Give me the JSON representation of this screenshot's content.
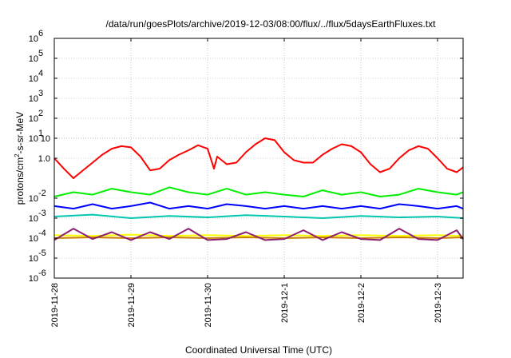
{
  "chart_data": {
    "type": "line",
    "title": "/data/run/goesPlots/archive/2019-12-03/08:00/flux/../flux/5daysEarthFluxes.txt",
    "xlabel": "Coordinated Universal Time (UTC)",
    "ylabel": {
      "base": "protons/cm",
      "sup": "2",
      "tail": "-s-sr-MeV"
    },
    "y_scale": "log",
    "ylim": [
      1e-06,
      1000000
    ],
    "y_ticks": [
      {
        "base": "10",
        "exp": "-6",
        "value": 1e-06
      },
      {
        "base": "10",
        "exp": "-5",
        "value": 1e-05
      },
      {
        "base": "10",
        "exp": "-4",
        "value": 0.0001
      },
      {
        "base": "10",
        "exp": "-3",
        "value": 0.001
      },
      {
        "base": "10",
        "exp": "-2",
        "value": 0.01
      },
      {
        "base": "10",
        "exp": "1",
        "value": 10
      },
      {
        "base": "10",
        "exp": "2",
        "value": 100
      },
      {
        "base": "10",
        "exp": "3",
        "value": 1000
      },
      {
        "base": "10",
        "exp": "4",
        "value": 10000
      },
      {
        "base": "10",
        "exp": "5",
        "value": 100000
      },
      {
        "base": "10",
        "exp": "6",
        "value": 1000000
      }
    ],
    "y_ticks_plain": [
      {
        "label": "10",
        "value": 10
      },
      {
        "label": "1.0",
        "value": 1
      }
    ],
    "xlim": [
      "2019-11-28 00:00",
      "2019-12-03 08:00"
    ],
    "x_ticks": [
      {
        "label": "2019-11-28",
        "value": "2019-11-28 00:00"
      },
      {
        "label": "2019-11-29",
        "value": "2019-11-29 00:00"
      },
      {
        "label": "2019-11-30",
        "value": "2019-11-30 00:00"
      },
      {
        "label": "2019-12-1",
        "value": "2019-12-01 00:00"
      },
      {
        "label": "2019-12-2",
        "value": "2019-12-02 00:00"
      },
      {
        "label": "2019-12-3",
        "value": "2019-12-03 00:00"
      }
    ],
    "grid": true,
    "series_colors": [
      "#ff0000",
      "#00ee00",
      "#0000ff",
      "#00c8b0",
      "#ffff00",
      "#c88000",
      "#8b2070"
    ],
    "series": [
      {
        "color": "#ff0000",
        "x": [
          "2019-11-28 00:00",
          "2019-11-28 03:00",
          "2019-11-28 06:00",
          "2019-11-28 09:00",
          "2019-11-28 12:00",
          "2019-11-28 15:00",
          "2019-11-28 18:00",
          "2019-11-28 21:00",
          "2019-11-29 00:00",
          "2019-11-29 03:00",
          "2019-11-29 06:00",
          "2019-11-29 09:00",
          "2019-11-29 12:00",
          "2019-11-29 15:00",
          "2019-11-29 18:00",
          "2019-11-29 21:00",
          "2019-11-30 00:00",
          "2019-11-30 02:00",
          "2019-11-30 03:00",
          "2019-11-30 06:00",
          "2019-11-30 09:00",
          "2019-11-30 12:00",
          "2019-11-30 15:00",
          "2019-11-30 18:00",
          "2019-11-30 21:00",
          "2019-12-01 00:00",
          "2019-12-01 03:00",
          "2019-12-01 06:00",
          "2019-12-01 09:00",
          "2019-12-01 12:00",
          "2019-12-01 15:00",
          "2019-12-01 18:00",
          "2019-12-01 21:00",
          "2019-12-02 00:00",
          "2019-12-02 03:00",
          "2019-12-02 06:00",
          "2019-12-02 09:00",
          "2019-12-02 12:00",
          "2019-12-02 15:00",
          "2019-12-02 18:00",
          "2019-12-02 21:00",
          "2019-12-03 00:00",
          "2019-12-03 03:00",
          "2019-12-03 06:00",
          "2019-12-03 08:00"
        ],
        "y": [
          1.0,
          0.3,
          0.1,
          0.25,
          0.6,
          1.5,
          3.0,
          4.0,
          3.5,
          1.2,
          0.25,
          0.3,
          0.8,
          1.5,
          2.5,
          4.5,
          3.0,
          0.3,
          1.2,
          0.5,
          0.6,
          2.0,
          5.0,
          10.0,
          8.0,
          2.0,
          0.8,
          0.6,
          0.6,
          1.5,
          3.0,
          5.0,
          4.0,
          2.0,
          0.5,
          0.2,
          0.3,
          1.0,
          2.5,
          4.0,
          3.0,
          1.0,
          0.3,
          0.2,
          0.35
        ]
      },
      {
        "color": "#00ee00",
        "x": [
          "2019-11-28 00:00",
          "2019-11-28 06:00",
          "2019-11-28 12:00",
          "2019-11-28 18:00",
          "2019-11-29 00:00",
          "2019-11-29 06:00",
          "2019-11-29 12:00",
          "2019-11-29 18:00",
          "2019-11-30 00:00",
          "2019-11-30 06:00",
          "2019-11-30 12:00",
          "2019-11-30 18:00",
          "2019-12-01 00:00",
          "2019-12-01 06:00",
          "2019-12-01 12:00",
          "2019-12-01 18:00",
          "2019-12-02 00:00",
          "2019-12-02 06:00",
          "2019-12-02 12:00",
          "2019-12-02 18:00",
          "2019-12-03 00:00",
          "2019-12-03 06:00",
          "2019-12-03 08:00"
        ],
        "y": [
          0.012,
          0.02,
          0.015,
          0.03,
          0.02,
          0.015,
          0.035,
          0.02,
          0.015,
          0.03,
          0.015,
          0.02,
          0.015,
          0.012,
          0.025,
          0.015,
          0.02,
          0.012,
          0.015,
          0.03,
          0.02,
          0.015,
          0.02
        ]
      },
      {
        "color": "#0000ff",
        "x": [
          "2019-11-28 00:00",
          "2019-11-28 06:00",
          "2019-11-28 12:00",
          "2019-11-28 18:00",
          "2019-11-29 00:00",
          "2019-11-29 06:00",
          "2019-11-29 12:00",
          "2019-11-29 18:00",
          "2019-11-30 00:00",
          "2019-11-30 06:00",
          "2019-11-30 12:00",
          "2019-11-30 18:00",
          "2019-12-01 00:00",
          "2019-12-01 06:00",
          "2019-12-01 12:00",
          "2019-12-01 18:00",
          "2019-12-02 00:00",
          "2019-12-02 06:00",
          "2019-12-02 12:00",
          "2019-12-02 18:00",
          "2019-12-03 00:00",
          "2019-12-03 06:00",
          "2019-12-03 08:00"
        ],
        "y": [
          0.004,
          0.003,
          0.005,
          0.003,
          0.004,
          0.006,
          0.003,
          0.004,
          0.003,
          0.005,
          0.004,
          0.003,
          0.004,
          0.003,
          0.004,
          0.003,
          0.004,
          0.003,
          0.005,
          0.004,
          0.003,
          0.004,
          0.003
        ]
      },
      {
        "color": "#00c8b0",
        "x": [
          "2019-11-28 00:00",
          "2019-11-28 12:00",
          "2019-11-29 00:00",
          "2019-11-29 12:00",
          "2019-11-30 00:00",
          "2019-11-30 12:00",
          "2019-12-01 00:00",
          "2019-12-01 12:00",
          "2019-12-02 00:00",
          "2019-12-02 12:00",
          "2019-12-03 00:00",
          "2019-12-03 08:00"
        ],
        "y": [
          0.0012,
          0.0015,
          0.001,
          0.0013,
          0.0011,
          0.0014,
          0.0012,
          0.001,
          0.0013,
          0.0011,
          0.0012,
          0.001
        ]
      },
      {
        "color": "#ffff00",
        "x": [
          "2019-11-28 00:00",
          "2019-11-28 12:00",
          "2019-11-29 00:00",
          "2019-11-29 12:00",
          "2019-11-30 00:00",
          "2019-11-30 12:00",
          "2019-12-01 00:00",
          "2019-12-01 12:00",
          "2019-12-02 00:00",
          "2019-12-02 12:00",
          "2019-12-03 00:00",
          "2019-12-03 08:00"
        ],
        "y": [
          0.00014,
          0.00013,
          0.00015,
          0.00013,
          0.00014,
          0.00013,
          0.00014,
          0.00013,
          0.00014,
          0.00013,
          0.00014,
          0.00013
        ]
      },
      {
        "color": "#c88000",
        "x": [
          "2019-11-28 00:00",
          "2019-11-28 12:00",
          "2019-11-29 00:00",
          "2019-11-29 12:00",
          "2019-11-30 00:00",
          "2019-11-30 12:00",
          "2019-12-01 00:00",
          "2019-12-01 12:00",
          "2019-12-02 00:00",
          "2019-12-02 12:00",
          "2019-12-03 00:00",
          "2019-12-03 08:00"
        ],
        "y": [
          0.0001,
          0.00011,
          0.0001,
          0.00011,
          0.0001,
          0.00011,
          0.0001,
          0.00011,
          0.0001,
          0.00011,
          0.0001,
          0.00011
        ]
      },
      {
        "color": "#8b2070",
        "x": [
          "2019-11-28 00:00",
          "2019-11-28 06:00",
          "2019-11-28 12:00",
          "2019-11-28 18:00",
          "2019-11-29 00:00",
          "2019-11-29 06:00",
          "2019-11-29 12:00",
          "2019-11-29 18:00",
          "2019-11-30 00:00",
          "2019-11-30 06:00",
          "2019-11-30 12:00",
          "2019-11-30 18:00",
          "2019-12-01 00:00",
          "2019-12-01 06:00",
          "2019-12-01 12:00",
          "2019-12-01 18:00",
          "2019-12-02 00:00",
          "2019-12-02 06:00",
          "2019-12-02 12:00",
          "2019-12-02 18:00",
          "2019-12-03 00:00",
          "2019-12-03 06:00",
          "2019-12-03 08:00"
        ],
        "y": [
          8e-05,
          0.0003,
          9e-05,
          0.0002,
          8e-05,
          0.0002,
          9e-05,
          0.0003,
          8e-05,
          9e-05,
          0.0002,
          8e-05,
          9e-05,
          0.00025,
          8e-05,
          0.0002,
          9e-05,
          8e-05,
          0.0003,
          9e-05,
          8e-05,
          0.00025,
          9e-05
        ]
      }
    ]
  }
}
